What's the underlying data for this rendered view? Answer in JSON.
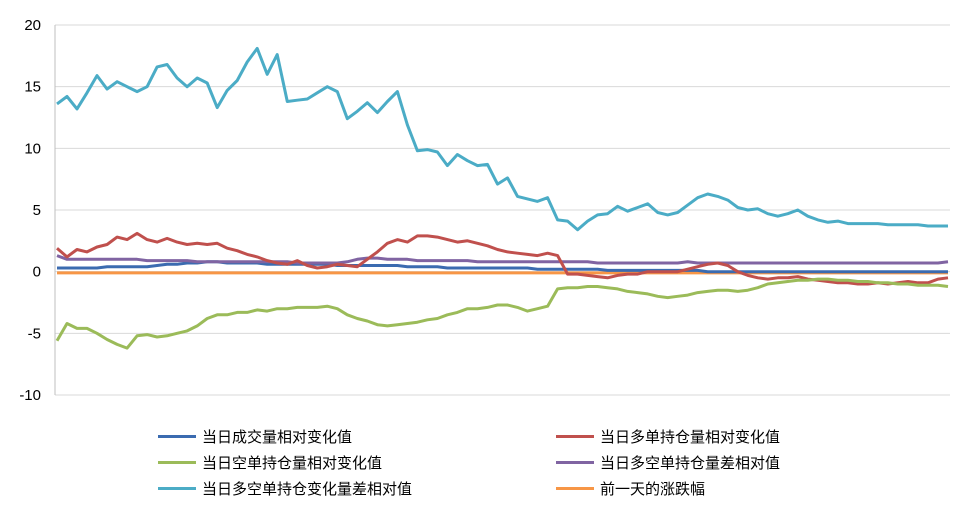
{
  "chart_data": {
    "type": "line",
    "title": "",
    "xlabel": "",
    "ylabel": "",
    "ylim": [
      -10,
      20
    ],
    "yticks": [
      "20",
      "15",
      "10",
      "5",
      "0",
      "-5",
      "-10"
    ],
    "grid": "horizontal",
    "legend_position": "bottom",
    "series": [
      {
        "name": "当日成交量相对变化值",
        "color": "#3B6BB0",
        "values": [
          0.3,
          0.3,
          0.3,
          0.3,
          0.3,
          0.4,
          0.4,
          0.4,
          0.4,
          0.4,
          0.5,
          0.6,
          0.6,
          0.7,
          0.7,
          0.8,
          0.8,
          0.7,
          0.7,
          0.7,
          0.7,
          0.6,
          0.6,
          0.6,
          0.6,
          0.6,
          0.6,
          0.6,
          0.5,
          0.5,
          0.5,
          0.5,
          0.5,
          0.5,
          0.5,
          0.4,
          0.4,
          0.4,
          0.4,
          0.3,
          0.3,
          0.3,
          0.3,
          0.3,
          0.3,
          0.3,
          0.3,
          0.3,
          0.2,
          0.2,
          0.2,
          0.2,
          0.2,
          0.2,
          0.2,
          0.1,
          0.1,
          0.1,
          0.1,
          0.1,
          0.1,
          0.1,
          0.1,
          0.1,
          0.1,
          0.0,
          0.0,
          0.0,
          0.0,
          0.0,
          0.0,
          0.0,
          0.0,
          0.0,
          0.0,
          0.0,
          0.0,
          0.0,
          0.0,
          0.0,
          0.0,
          0.0,
          0.0,
          0.0,
          0.0,
          0.0,
          0.0,
          0.0,
          0.0,
          0.0
        ]
      },
      {
        "name": "当日多单持仓量相对变化值",
        "color": "#C0504D",
        "values": [
          1.9,
          1.2,
          1.8,
          1.6,
          2.0,
          2.2,
          2.8,
          2.6,
          3.1,
          2.6,
          2.4,
          2.7,
          2.4,
          2.2,
          2.3,
          2.2,
          2.3,
          1.9,
          1.7,
          1.4,
          1.2,
          0.9,
          0.7,
          0.6,
          0.9,
          0.5,
          0.3,
          0.4,
          0.6,
          0.5,
          0.4,
          1.0,
          1.6,
          2.3,
          2.6,
          2.4,
          2.9,
          2.9,
          2.8,
          2.6,
          2.4,
          2.5,
          2.3,
          2.1,
          1.8,
          1.6,
          1.5,
          1.4,
          1.3,
          1.5,
          1.3,
          -0.2,
          -0.2,
          -0.3,
          -0.4,
          -0.5,
          -0.3,
          -0.2,
          -0.2,
          0.0,
          0.0,
          0.0,
          0.0,
          0.2,
          0.4,
          0.6,
          0.7,
          0.5,
          0.0,
          -0.3,
          -0.5,
          -0.6,
          -0.5,
          -0.5,
          -0.4,
          -0.6,
          -0.7,
          -0.8,
          -0.9,
          -0.9,
          -1.0,
          -1.0,
          -0.9,
          -1.0,
          -0.9,
          -0.8,
          -0.9,
          -0.9,
          -0.6,
          -0.5
        ]
      },
      {
        "name": "当日空单持仓量相对变化值",
        "color": "#9BBB59",
        "values": [
          -5.6,
          -4.2,
          -4.6,
          -4.6,
          -5.0,
          -5.5,
          -5.9,
          -6.2,
          -5.2,
          -5.1,
          -5.3,
          -5.2,
          -5.0,
          -4.8,
          -4.4,
          -3.8,
          -3.5,
          -3.5,
          -3.3,
          -3.3,
          -3.1,
          -3.2,
          -3.0,
          -3.0,
          -2.9,
          -2.9,
          -2.9,
          -2.8,
          -3.0,
          -3.5,
          -3.8,
          -4.0,
          -4.3,
          -4.4,
          -4.3,
          -4.2,
          -4.1,
          -3.9,
          -3.8,
          -3.5,
          -3.3,
          -3.0,
          -3.0,
          -2.9,
          -2.7,
          -2.7,
          -2.9,
          -3.2,
          -3.0,
          -2.8,
          -1.4,
          -1.3,
          -1.3,
          -1.2,
          -1.2,
          -1.3,
          -1.4,
          -1.6,
          -1.7,
          -1.8,
          -2.0,
          -2.1,
          -2.0,
          -1.9,
          -1.7,
          -1.6,
          -1.5,
          -1.5,
          -1.6,
          -1.5,
          -1.3,
          -1.0,
          -0.9,
          -0.8,
          -0.7,
          -0.7,
          -0.6,
          -0.6,
          -0.7,
          -0.7,
          -0.8,
          -0.8,
          -0.9,
          -0.9,
          -1.0,
          -1.0,
          -1.1,
          -1.1,
          -1.1,
          -1.2
        ]
      },
      {
        "name": "当日多空单持仓量差相对值",
        "color": "#8064A2",
        "values": [
          1.3,
          1.0,
          1.0,
          1.0,
          1.0,
          1.0,
          1.0,
          1.0,
          1.0,
          0.9,
          0.9,
          0.9,
          0.9,
          0.9,
          0.8,
          0.8,
          0.8,
          0.8,
          0.8,
          0.8,
          0.8,
          0.8,
          0.8,
          0.8,
          0.7,
          0.7,
          0.7,
          0.7,
          0.7,
          0.8,
          1.0,
          1.1,
          1.1,
          1.0,
          1.0,
          1.0,
          0.9,
          0.9,
          0.9,
          0.9,
          0.9,
          0.9,
          0.8,
          0.8,
          0.8,
          0.8,
          0.8,
          0.8,
          0.8,
          0.8,
          0.8,
          0.8,
          0.8,
          0.8,
          0.7,
          0.7,
          0.7,
          0.7,
          0.7,
          0.7,
          0.7,
          0.7,
          0.7,
          0.8,
          0.7,
          0.7,
          0.7,
          0.7,
          0.7,
          0.7,
          0.7,
          0.7,
          0.7,
          0.7,
          0.7,
          0.7,
          0.7,
          0.7,
          0.7,
          0.7,
          0.7,
          0.7,
          0.7,
          0.7,
          0.7,
          0.7,
          0.7,
          0.7,
          0.7,
          0.8
        ]
      },
      {
        "name": "当日多空单持仓变化量差相对值",
        "color": "#4BACC6",
        "values": [
          13.6,
          14.2,
          13.2,
          14.5,
          15.9,
          14.8,
          15.4,
          15.0,
          14.6,
          15.0,
          16.6,
          16.8,
          15.7,
          15.0,
          15.7,
          15.3,
          13.3,
          14.7,
          15.5,
          17.0,
          18.1,
          16.0,
          17.6,
          13.8,
          13.9,
          14.0,
          14.5,
          15.0,
          14.6,
          12.4,
          13.0,
          13.7,
          12.9,
          13.8,
          14.6,
          11.9,
          9.8,
          9.9,
          9.7,
          8.6,
          9.5,
          9.0,
          8.6,
          8.7,
          7.1,
          7.6,
          6.1,
          5.9,
          5.7,
          6.0,
          4.2,
          4.1,
          3.4,
          4.1,
          4.6,
          4.7,
          5.3,
          4.9,
          5.2,
          5.5,
          4.8,
          4.6,
          4.8,
          5.4,
          6.0,
          6.3,
          6.1,
          5.8,
          5.2,
          5.0,
          5.1,
          4.7,
          4.5,
          4.7,
          5.0,
          4.5,
          4.2,
          4.0,
          4.1,
          3.9,
          3.9,
          3.9,
          3.9,
          3.8,
          3.8,
          3.8,
          3.8,
          3.7,
          3.7,
          3.7
        ]
      },
      {
        "name": "前一天的涨跌幅",
        "color": "#F79646",
        "values": [
          -0.1,
          -0.1,
          -0.1,
          -0.1,
          -0.1,
          -0.1,
          -0.1,
          -0.1,
          -0.1,
          -0.1,
          -0.1,
          -0.1,
          -0.1,
          -0.1,
          -0.1,
          -0.1,
          -0.1,
          -0.1,
          -0.1,
          -0.1,
          -0.1,
          -0.1,
          -0.1,
          -0.1,
          -0.1,
          -0.1,
          -0.1,
          -0.1,
          -0.1,
          -0.1,
          -0.1,
          -0.1,
          -0.1,
          -0.1,
          -0.1,
          -0.1,
          -0.1,
          -0.1,
          -0.1,
          -0.1,
          -0.1,
          -0.1,
          -0.1,
          -0.1,
          -0.1,
          -0.1,
          -0.1,
          -0.1,
          -0.1,
          -0.1,
          -0.1,
          -0.1,
          -0.1,
          -0.1,
          -0.1,
          -0.1,
          -0.1,
          -0.1,
          -0.1,
          -0.1,
          -0.1,
          -0.1,
          -0.1,
          -0.1,
          -0.1,
          -0.1,
          -0.1,
          -0.1,
          -0.1,
          -0.1,
          -0.1,
          -0.1,
          -0.1,
          -0.1,
          -0.1,
          -0.1,
          -0.1,
          -0.1,
          -0.1,
          -0.1,
          -0.1,
          -0.1,
          -0.1,
          -0.1,
          -0.1,
          -0.1,
          -0.1,
          -0.1,
          -0.1,
          -0.1
        ]
      }
    ]
  }
}
